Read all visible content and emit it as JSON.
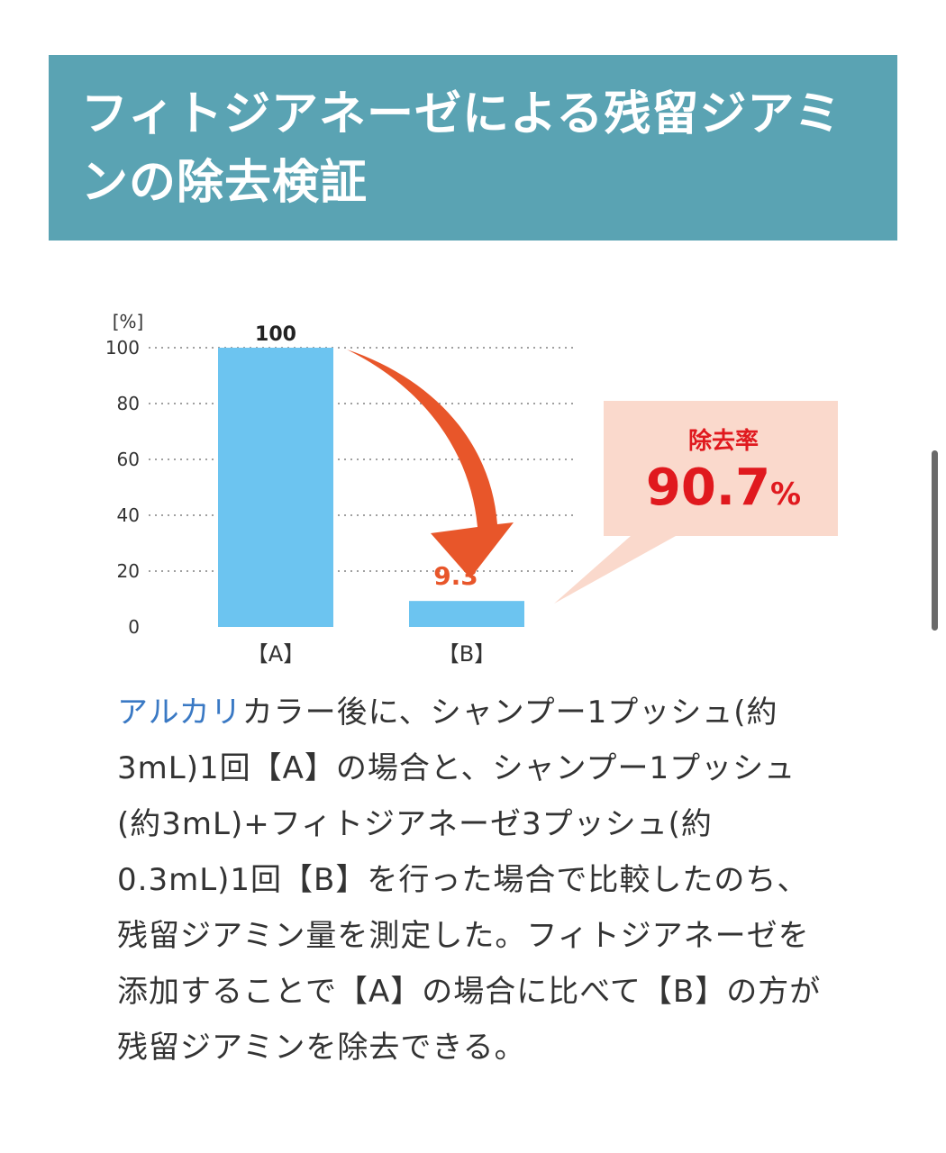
{
  "page": {
    "title": "フィトジアネーゼによる残留ジアミンの除去検証"
  },
  "chart_data": {
    "type": "bar",
    "categories": [
      "【A】",
      "【B】"
    ],
    "values": [
      100,
      9.3
    ],
    "value_labels": [
      "100",
      "9.3"
    ],
    "ylabel": "[%]",
    "ylim": [
      0,
      100
    ],
    "yticks": [
      0,
      20,
      40,
      60,
      80,
      100
    ],
    "grid": true,
    "colors": {
      "bar": "#6cc4f0",
      "arrow": "#e8562a",
      "callout_bg": "#fad9cc",
      "callout_text": "#e0191e",
      "b_label": "#e8562a"
    },
    "callout": {
      "label": "除去率",
      "value": "90.7",
      "unit": "%"
    }
  },
  "description": {
    "highlight": "アルカリ",
    "text": "カラー後に、シャンプー1プッシュ(約3mL)1回【A】の場合と、シャンプー1プッシュ(約3mL)+フィトジアネーゼ3プッシュ(約0.3mL)1回【B】を行った場合で比較したのち、残留ジアミン量を測定した。フィトジアネーゼを添加することで【A】の場合に比べて【B】の方が残留ジアミンを除去できる。"
  }
}
